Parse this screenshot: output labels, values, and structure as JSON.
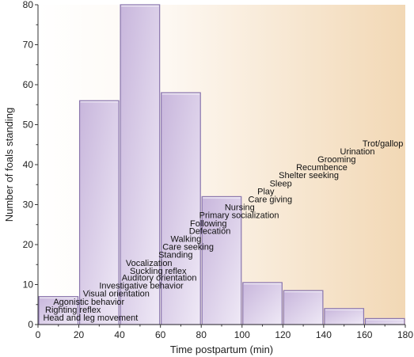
{
  "chart_data": {
    "type": "bar",
    "xlabel": "Time postpartum (min)",
    "ylabel": "Number of foals standing",
    "xlim": [
      0,
      180
    ],
    "ylim": [
      0,
      80
    ],
    "xticks": [
      "0",
      "20",
      "40",
      "60",
      "80",
      "100",
      "120",
      "140",
      "160",
      "180"
    ],
    "yticks": [
      "0",
      "10",
      "20",
      "30",
      "40",
      "50",
      "60",
      "70",
      "80"
    ],
    "bins": [
      {
        "x0": 0,
        "x1": 20,
        "value": 7
      },
      {
        "x0": 20,
        "x1": 40,
        "value": 56
      },
      {
        "x0": 40,
        "x1": 60,
        "value": 80
      },
      {
        "x0": 60,
        "x1": 80,
        "value": 58
      },
      {
        "x0": 80,
        "x1": 100,
        "value": 32
      },
      {
        "x0": 100,
        "x1": 120,
        "value": 10.5
      },
      {
        "x0": 120,
        "x1": 140,
        "value": 8.5
      },
      {
        "x0": 140,
        "x1": 160,
        "value": 4
      },
      {
        "x0": 160,
        "x1": 180,
        "value": 1.5
      }
    ],
    "annotations": [
      {
        "text": "Head and leg movement",
        "x": 2.5,
        "y": 1.0
      },
      {
        "text": "Righting reflex",
        "x": 3.5,
        "y": 3.0
      },
      {
        "text": "Agonistic behavior",
        "x": 7.5,
        "y": 5.0
      },
      {
        "text": "Visual orientation",
        "x": 22.0,
        "y": 7.0
      },
      {
        "text": "Investigative behavior",
        "x": 30.0,
        "y": 9.0
      },
      {
        "text": "Auditory orientation",
        "x": 41.0,
        "y": 11.0
      },
      {
        "text": "Suckling reflex",
        "x": 45.0,
        "y": 12.7
      },
      {
        "text": "Vocalization",
        "x": 43.0,
        "y": 14.7
      },
      {
        "text": "Standing",
        "x": 59.0,
        "y": 16.7
      },
      {
        "text": "Care seeking",
        "x": 61.0,
        "y": 18.7
      },
      {
        "text": "Walking",
        "x": 65.0,
        "y": 20.7
      },
      {
        "text": "Defecation",
        "x": 74.0,
        "y": 22.7
      },
      {
        "text": "Following",
        "x": 74.5,
        "y": 24.6
      },
      {
        "text": "Primary socialization",
        "x": 79.0,
        "y": 26.6
      },
      {
        "text": "Nursing",
        "x": 91.5,
        "y": 28.6
      },
      {
        "text": "Care giving",
        "x": 103.0,
        "y": 30.6
      },
      {
        "text": "Play",
        "x": 107.5,
        "y": 32.6
      },
      {
        "text": "Sleep",
        "x": 113.5,
        "y": 34.6
      },
      {
        "text": "Shelter seeking",
        "x": 118.0,
        "y": 36.6
      },
      {
        "text": "Recumbence",
        "x": 126.5,
        "y": 38.6
      },
      {
        "text": "Grooming",
        "x": 137.0,
        "y": 40.6
      },
      {
        "text": "Urination",
        "x": 148.0,
        "y": 42.6
      },
      {
        "text": "Trot/gallop",
        "x": 159.0,
        "y": 44.6
      }
    ],
    "grid": false,
    "legend": "none",
    "colors": {
      "bar_fill": "#d3c6e3",
      "bar_stroke": "#8a76ad",
      "bg_start": "#fdf8f2",
      "bg_end": "#f2d8b5"
    }
  }
}
